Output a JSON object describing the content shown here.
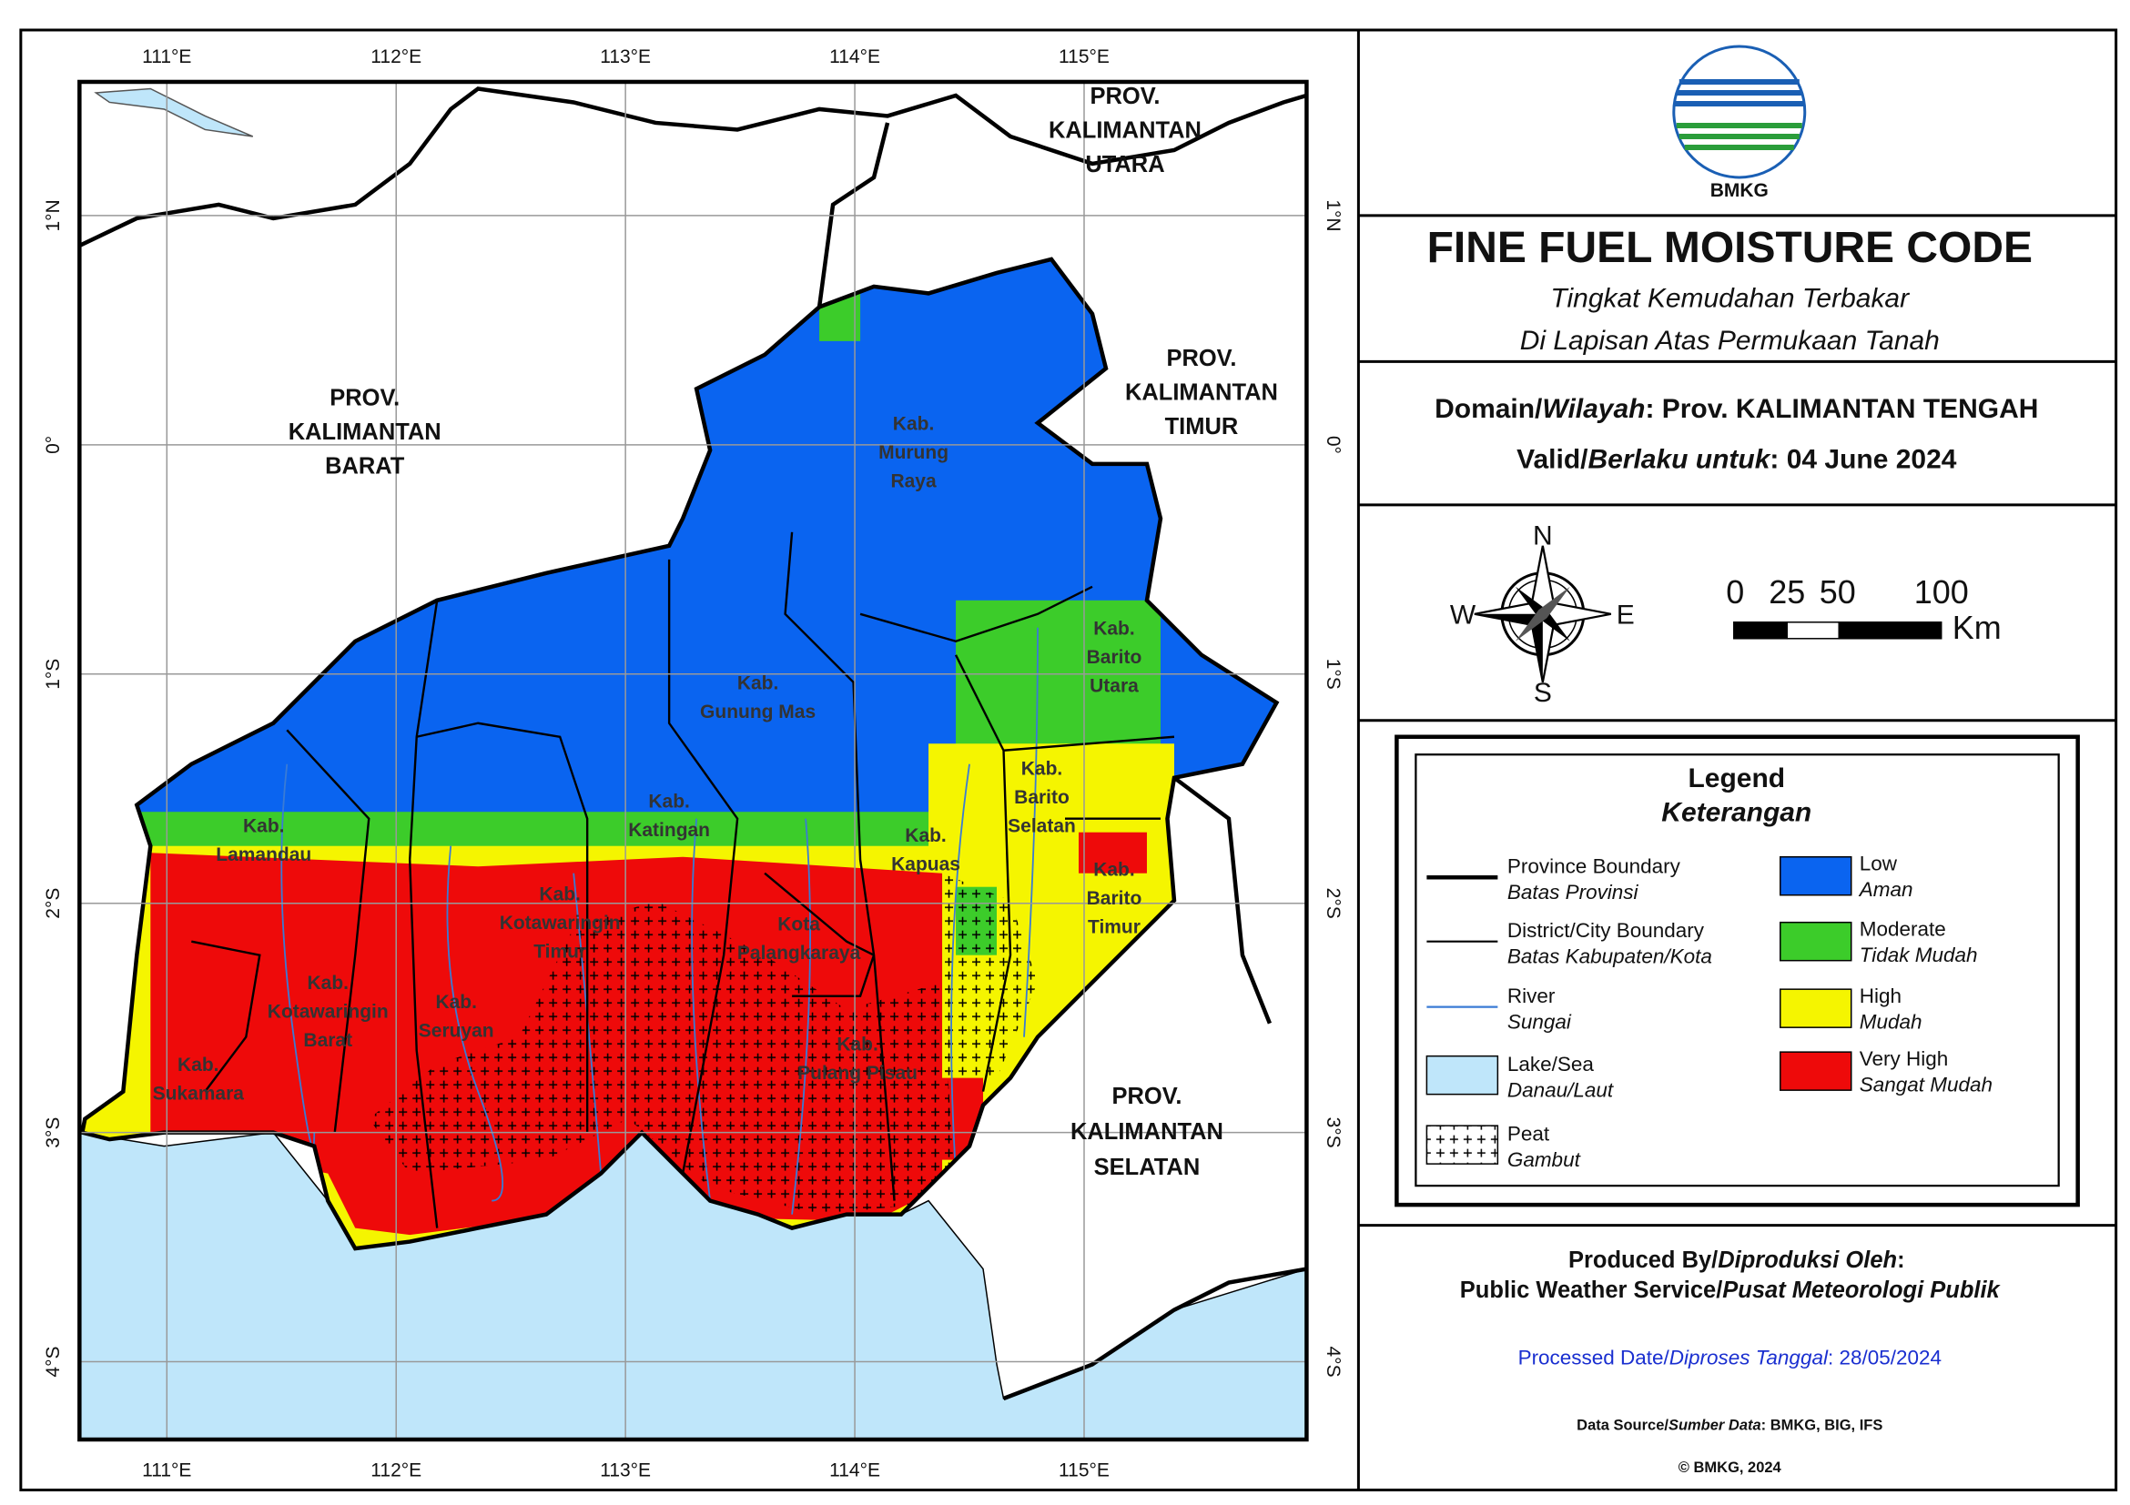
{
  "map": {
    "graticule": {
      "top": [
        "111°E",
        "112°E",
        "113°E",
        "114°E",
        "115°E"
      ],
      "bottom": [
        "111°E",
        "112°E",
        "113°E",
        "114°E",
        "115°E"
      ],
      "left": [
        "1°N",
        "0°",
        "1°S",
        "2°S",
        "3°S",
        "4°S"
      ],
      "right": [
        "1°N",
        "0°",
        "1°S",
        "2°S",
        "3°S",
        "4°S"
      ]
    },
    "province_labels": [
      {
        "lines": [
          "PROV.",
          "KALIMANTAN",
          "UTARA"
        ]
      },
      {
        "lines": [
          "PROV.",
          "KALIMANTAN",
          "BARAT"
        ]
      },
      {
        "lines": [
          "PROV.",
          "KALIMANTAN",
          "TIMUR"
        ]
      },
      {
        "lines": [
          "PROV.",
          "KALIMANTAN",
          "SELATAN"
        ]
      }
    ],
    "district_labels": [
      {
        "lines": [
          "Kab.",
          "Murung",
          "Raya"
        ]
      },
      {
        "lines": [
          "Kab.",
          "Gunung Mas"
        ]
      },
      {
        "lines": [
          "Kab.",
          "Barito",
          "Utara"
        ]
      },
      {
        "lines": [
          "Kab.",
          "Katingan"
        ]
      },
      {
        "lines": [
          "Kab.",
          "Barito",
          "Selatan"
        ]
      },
      {
        "lines": [
          "Kab.",
          "Lamandau"
        ]
      },
      {
        "lines": [
          "Kab.",
          "Kapuas"
        ]
      },
      {
        "lines": [
          "Kab.",
          "Barito",
          "Timur"
        ]
      },
      {
        "lines": [
          "Kab.",
          "Kotawaringin",
          "Timur"
        ]
      },
      {
        "lines": [
          "Kota",
          "Palangkaraya"
        ]
      },
      {
        "lines": [
          "Kab.",
          "Kotawaringin",
          "Barat"
        ]
      },
      {
        "lines": [
          "Kab.",
          "Seruyan"
        ]
      },
      {
        "lines": [
          "Kab.",
          "Pulang Pisau"
        ]
      },
      {
        "lines": [
          "Kab.",
          "Sukamara"
        ]
      }
    ]
  },
  "header": {
    "logo_text": "BMKG",
    "title": "FINE FUEL MOISTURE CODE",
    "subtitle": [
      "Tingkat Kemudahan Terbakar",
      "Di Lapisan Atas Permukaan Tanah"
    ],
    "domain": {
      "label": "Domain/",
      "label_id": "Wilayah",
      "value": ": Prov. KALIMANTAN TENGAH"
    },
    "valid": {
      "label": "Valid/",
      "label_id": "Berlaku untuk",
      "value": ": 04 June 2024"
    }
  },
  "compass": {
    "n": "N",
    "e": "E",
    "s": "S",
    "w": "W"
  },
  "scale_bar": {
    "labels": [
      "0",
      "25",
      "50",
      "100"
    ],
    "unit": "Km"
  },
  "legend": {
    "title": "Legend",
    "title_id": "Keterangan",
    "symbols": [
      {
        "label": "Province Boundary",
        "label_id": "Batas Provinsi"
      },
      {
        "label": "District/City Boundary",
        "label_id": "Batas Kabupaten/Kota"
      },
      {
        "label": "River",
        "label_id": "Sungai"
      },
      {
        "label": "Lake/Sea",
        "label_id": "Danau/Laut"
      },
      {
        "label": "Peat",
        "label_id": "Gambut"
      }
    ],
    "classes": [
      {
        "label": "Low",
        "label_id": "Aman",
        "color": "#0a64f0"
      },
      {
        "label": "Moderate",
        "label_id": "Tidak Mudah",
        "color": "#3ccc2a"
      },
      {
        "label": "High",
        "label_id": "Mudah",
        "color": "#f5f500"
      },
      {
        "label": "Very High",
        "label_id": "Sangat Mudah",
        "color": "#ee0a0a"
      }
    ]
  },
  "credits": {
    "produced": {
      "label": "Produced By/",
      "label_id": "Diproduksi Oleh",
      "suffix": ":"
    },
    "producer": {
      "name": "Public Weather Service/",
      "name_id": "Pusat Meteorologi Publik"
    },
    "processed": {
      "label": "Processed Date/",
      "label_id": "Diproses Tanggal",
      "value": ": 28/05/2024"
    },
    "source": {
      "label": "Data Source/",
      "label_id": "Sumber Data",
      "value": ": BMKG, BIG, IFS"
    },
    "copyright": "© BMKG, 2024"
  }
}
